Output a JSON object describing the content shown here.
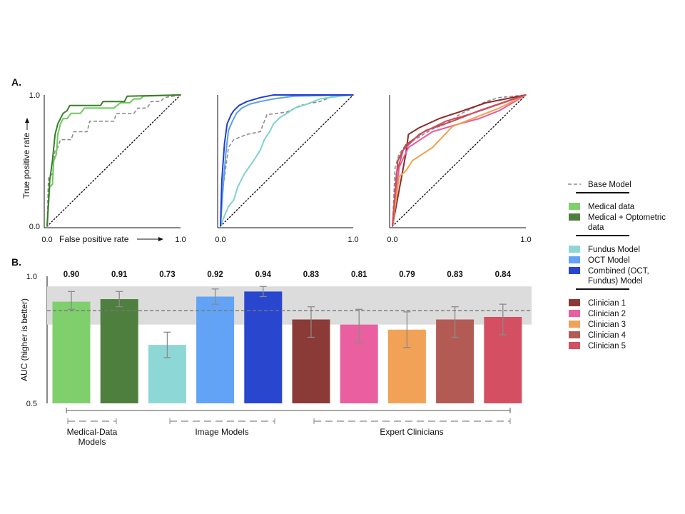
{
  "figure": {
    "panel_a_label": "A.",
    "panel_b_label": "B."
  },
  "chart_data": [
    {
      "type": "line",
      "panel": "A",
      "xlabel": "False positive rate",
      "ylabel": "True positive rate",
      "xlim": [
        0,
        1
      ],
      "ylim": [
        0,
        1
      ],
      "x_tick_labels": [
        "0.0",
        "1.0"
      ],
      "y_tick_labels": [
        "0.0",
        "1.0"
      ],
      "grid": false,
      "series": [
        {
          "name": "Base Model",
          "color": "#8c8c8c",
          "style": "dashed",
          "points": [
            [
              0,
              0
            ],
            [
              0.01,
              0.37
            ],
            [
              0.04,
              0.4
            ],
            [
              0.06,
              0.58
            ],
            [
              0.08,
              0.6
            ],
            [
              0.1,
              0.66
            ],
            [
              0.18,
              0.66
            ],
            [
              0.2,
              0.72
            ],
            [
              0.3,
              0.72
            ],
            [
              0.32,
              0.8
            ],
            [
              0.5,
              0.8
            ],
            [
              0.52,
              0.86
            ],
            [
              0.65,
              0.86
            ],
            [
              0.68,
              0.9
            ],
            [
              0.75,
              0.9
            ],
            [
              0.78,
              0.95
            ],
            [
              0.85,
              0.95
            ],
            [
              0.88,
              0.98
            ],
            [
              1,
              1
            ]
          ]
        },
        {
          "name": "Medical data",
          "color": "#6acb5a",
          "style": "solid",
          "points": [
            [
              0,
              0
            ],
            [
              0.02,
              0.3
            ],
            [
              0.04,
              0.32
            ],
            [
              0.05,
              0.5
            ],
            [
              0.07,
              0.55
            ],
            [
              0.08,
              0.7
            ],
            [
              0.1,
              0.78
            ],
            [
              0.12,
              0.82
            ],
            [
              0.15,
              0.82
            ],
            [
              0.18,
              0.86
            ],
            [
              0.25,
              0.86
            ],
            [
              0.28,
              0.9
            ],
            [
              0.5,
              0.9
            ],
            [
              0.55,
              0.94
            ],
            [
              0.62,
              0.94
            ],
            [
              0.65,
              0.97
            ],
            [
              0.7,
              0.97
            ],
            [
              0.72,
              0.99
            ],
            [
              1,
              1
            ]
          ]
        },
        {
          "name": "Medical + Optometric data",
          "color": "#3b7d2a",
          "style": "solid",
          "points": [
            [
              0,
              0
            ],
            [
              0.02,
              0.35
            ],
            [
              0.04,
              0.5
            ],
            [
              0.06,
              0.7
            ],
            [
              0.08,
              0.78
            ],
            [
              0.1,
              0.82
            ],
            [
              0.12,
              0.86
            ],
            [
              0.15,
              0.88
            ],
            [
              0.17,
              0.92
            ],
            [
              0.4,
              0.92
            ],
            [
              0.42,
              0.95
            ],
            [
              0.58,
              0.95
            ],
            [
              0.6,
              0.99
            ],
            [
              1,
              1
            ]
          ]
        }
      ]
    },
    {
      "type": "line",
      "panel": "A",
      "xlim": [
        0,
        1
      ],
      "ylim": [
        0,
        1
      ],
      "x_tick_labels": [
        "0.0",
        "1.0"
      ],
      "grid": false,
      "series": [
        {
          "name": "Base Model",
          "color": "#8c8c8c",
          "style": "dashed",
          "points": [
            [
              0,
              0
            ],
            [
              0.02,
              0.3
            ],
            [
              0.06,
              0.6
            ],
            [
              0.1,
              0.66
            ],
            [
              0.2,
              0.7
            ],
            [
              0.3,
              0.72
            ],
            [
              0.35,
              0.85
            ],
            [
              0.5,
              0.87
            ],
            [
              0.6,
              0.92
            ],
            [
              0.75,
              0.95
            ],
            [
              0.85,
              0.99
            ],
            [
              1,
              1
            ]
          ]
        },
        {
          "name": "Fundus Model",
          "color": "#7dd4d3",
          "style": "solid",
          "points": [
            [
              0,
              0
            ],
            [
              0.03,
              0.08
            ],
            [
              0.06,
              0.15
            ],
            [
              0.1,
              0.2
            ],
            [
              0.13,
              0.3
            ],
            [
              0.18,
              0.4
            ],
            [
              0.25,
              0.5
            ],
            [
              0.3,
              0.58
            ],
            [
              0.33,
              0.66
            ],
            [
              0.37,
              0.72
            ],
            [
              0.4,
              0.78
            ],
            [
              0.45,
              0.83
            ],
            [
              0.5,
              0.86
            ],
            [
              0.56,
              0.9
            ],
            [
              0.65,
              0.93
            ],
            [
              0.75,
              0.97
            ],
            [
              0.9,
              0.99
            ],
            [
              1,
              1
            ]
          ]
        },
        {
          "name": "OCT Model",
          "color": "#5a9ef2",
          "style": "solid",
          "points": [
            [
              0,
              0
            ],
            [
              0.02,
              0.3
            ],
            [
              0.04,
              0.55
            ],
            [
              0.06,
              0.73
            ],
            [
              0.09,
              0.8
            ],
            [
              0.12,
              0.86
            ],
            [
              0.16,
              0.9
            ],
            [
              0.22,
              0.93
            ],
            [
              0.3,
              0.95
            ],
            [
              0.4,
              0.97
            ],
            [
              0.55,
              0.99
            ],
            [
              1,
              1
            ]
          ]
        },
        {
          "name": "Combined (OCT, Fundus)  Model",
          "color": "#1f3fd1",
          "style": "solid",
          "points": [
            [
              0,
              0
            ],
            [
              0.01,
              0.35
            ],
            [
              0.03,
              0.63
            ],
            [
              0.05,
              0.78
            ],
            [
              0.08,
              0.85
            ],
            [
              0.1,
              0.88
            ],
            [
              0.14,
              0.92
            ],
            [
              0.2,
              0.95
            ],
            [
              0.3,
              0.98
            ],
            [
              0.4,
              1
            ],
            [
              1,
              1
            ]
          ]
        }
      ]
    },
    {
      "type": "line",
      "panel": "A",
      "xlim": [
        0,
        1
      ],
      "ylim": [
        0,
        1
      ],
      "x_tick_labels": [
        "0.0",
        "1.0"
      ],
      "grid": false,
      "series": [
        {
          "name": "Base Model",
          "color": "#8c8c8c",
          "style": "dashed",
          "points": [
            [
              0,
              0
            ],
            [
              0.02,
              0.45
            ],
            [
              0.05,
              0.55
            ],
            [
              0.1,
              0.62
            ],
            [
              0.2,
              0.68
            ],
            [
              0.3,
              0.74
            ],
            [
              0.4,
              0.78
            ],
            [
              0.5,
              0.85
            ],
            [
              0.6,
              0.9
            ],
            [
              0.7,
              0.95
            ],
            [
              0.8,
              0.98
            ],
            [
              1,
              1
            ]
          ]
        },
        {
          "name": "Clinician 1",
          "color": "#8c2a2a",
          "style": "solid",
          "points": [
            [
              0,
              0
            ],
            [
              0.1,
              0.55
            ],
            [
              0.12,
              0.7
            ],
            [
              0.2,
              0.75
            ],
            [
              0.35,
              0.82
            ],
            [
              0.5,
              0.87
            ],
            [
              0.7,
              0.94
            ],
            [
              1,
              1
            ]
          ]
        },
        {
          "name": "Clinician 2",
          "color": "#e85aa1",
          "style": "solid",
          "points": [
            [
              0,
              0
            ],
            [
              0.05,
              0.45
            ],
            [
              0.12,
              0.6
            ],
            [
              0.3,
              0.72
            ],
            [
              0.5,
              0.78
            ],
            [
              0.65,
              0.82
            ],
            [
              0.8,
              0.88
            ],
            [
              1,
              1
            ]
          ]
        },
        {
          "name": "Clinician 3",
          "color": "#f4a04f",
          "style": "solid",
          "points": [
            [
              0,
              0
            ],
            [
              0.05,
              0.38
            ],
            [
              0.1,
              0.42
            ],
            [
              0.15,
              0.5
            ],
            [
              0.3,
              0.6
            ],
            [
              0.45,
              0.76
            ],
            [
              0.6,
              0.82
            ],
            [
              0.8,
              0.9
            ],
            [
              1,
              1
            ]
          ]
        },
        {
          "name": "Clinician 4",
          "color": "#b04f4f",
          "style": "solid",
          "points": [
            [
              0,
              0
            ],
            [
              0.04,
              0.5
            ],
            [
              0.1,
              0.62
            ],
            [
              0.25,
              0.73
            ],
            [
              0.45,
              0.8
            ],
            [
              0.65,
              0.88
            ],
            [
              0.85,
              0.95
            ],
            [
              1,
              1
            ]
          ]
        },
        {
          "name": "Clinician 5",
          "color": "#d24c60",
          "style": "solid",
          "points": [
            [
              0,
              0
            ],
            [
              0.03,
              0.4
            ],
            [
              0.08,
              0.58
            ],
            [
              0.2,
              0.7
            ],
            [
              0.4,
              0.8
            ],
            [
              0.6,
              0.86
            ],
            [
              0.8,
              0.93
            ],
            [
              1,
              1
            ]
          ]
        }
      ]
    },
    {
      "type": "bar",
      "panel": "B",
      "ylabel": "AUC  (higher is better)",
      "ylim": [
        0.5,
        1.0
      ],
      "y_tick_labels": [
        "0.5",
        "1.0"
      ],
      "grid": false,
      "categories": [
        "Medical data",
        "Medical + Optometric data",
        "Fundus Model",
        "OCT Model",
        "Combined (OCT, Fundus)  Model",
        "Clinician 1",
        "Clinician 2",
        "Clinician 3",
        "Clinician 4",
        "Clinician 5"
      ],
      "value_labels": [
        "0.90",
        "0.91",
        "0.73",
        "0.92",
        "0.94",
        "0.83",
        "0.81",
        "0.79",
        "0.83",
        "0.84"
      ],
      "values": [
        0.9,
        0.91,
        0.73,
        0.92,
        0.94,
        0.83,
        0.81,
        0.79,
        0.83,
        0.84
      ],
      "error_low": [
        0.87,
        0.88,
        0.68,
        0.89,
        0.92,
        0.76,
        0.74,
        0.72,
        0.76,
        0.77
      ],
      "error_high": [
        0.94,
        0.94,
        0.78,
        0.95,
        0.96,
        0.88,
        0.87,
        0.86,
        0.88,
        0.89
      ],
      "colors": [
        "#80cf6d",
        "#4f7f3f",
        "#8dd8d6",
        "#62a3f5",
        "#2946cf",
        "#8a3a37",
        "#ea5f9f",
        "#f1a256",
        "#b45a55",
        "#d44f62"
      ],
      "baseline": {
        "name": "Base Model",
        "value": 0.865,
        "band": [
          0.81,
          0.96
        ]
      },
      "groups": [
        {
          "label_lines": [
            "Medical-Data",
            "Models"
          ],
          "from": 0,
          "to": 1
        },
        {
          "label_lines": [
            "Image Models"
          ],
          "from": 2,
          "to": 4
        },
        {
          "label_lines": [
            "Expert Clinicians"
          ],
          "from": 5,
          "to": 9
        }
      ]
    }
  ],
  "legend": {
    "groups": [
      [
        {
          "label_lines": [
            "Base Model"
          ],
          "color": "#8c8c8c",
          "kind": "dash"
        }
      ],
      [
        {
          "label_lines": [
            "Medical data"
          ],
          "color": "#80cf6d",
          "kind": "swatch"
        },
        {
          "label_lines": [
            "Medical + Optometric",
            "data"
          ],
          "color": "#4f7f3f",
          "kind": "swatch"
        }
      ],
      [
        {
          "label_lines": [
            "Fundus Model"
          ],
          "color": "#8dd8d6",
          "kind": "swatch"
        },
        {
          "label_lines": [
            "OCT Model"
          ],
          "color": "#62a3f5",
          "kind": "swatch"
        },
        {
          "label_lines": [
            "Combined (OCT,",
            "Fundus)  Model"
          ],
          "color": "#2946cf",
          "kind": "swatch"
        }
      ],
      [
        {
          "label_lines": [
            "Clinician 1"
          ],
          "color": "#8a3a37",
          "kind": "swatch"
        },
        {
          "label_lines": [
            "Clinician 2"
          ],
          "color": "#ea5f9f",
          "kind": "swatch"
        },
        {
          "label_lines": [
            "Clinician 3"
          ],
          "color": "#f1a256",
          "kind": "swatch"
        },
        {
          "label_lines": [
            "Clinician 4"
          ],
          "color": "#b45a55",
          "kind": "swatch"
        },
        {
          "label_lines": [
            "Clinician 5"
          ],
          "color": "#d44f62",
          "kind": "swatch"
        }
      ]
    ]
  }
}
